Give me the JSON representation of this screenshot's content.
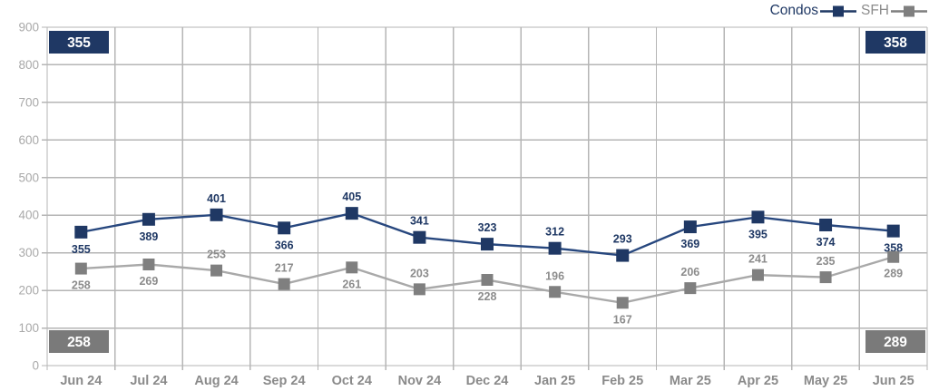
{
  "legend": {
    "condos_label": "Condos",
    "sfh_label": "SFH"
  },
  "colors": {
    "navy": "#1F3864",
    "navy_line": "#27477E",
    "gray_marker": "#7F7F7F",
    "gray_line": "#A9A9A9",
    "gray_badge": "#7A7A7A",
    "grid": "#B5B5B5",
    "ytick_label": "#A9A9A9",
    "xtick_label": "#8A8A8A",
    "condos_value_label": "#1F3864",
    "sfh_value_label": "#8C8C8C",
    "badge_text": "#FFFFFF"
  },
  "chart_data": {
    "type": "line",
    "categories": [
      "Jun 24",
      "Jul 24",
      "Aug 24",
      "Sep 24",
      "Oct 24",
      "Nov 24",
      "Dec 24",
      "Jan 25",
      "Feb 25",
      "Mar 25",
      "Apr 25",
      "May 25",
      "Jun 25"
    ],
    "series": [
      {
        "name": "Condos",
        "values": [
          355,
          389,
          401,
          366,
          405,
          341,
          323,
          312,
          293,
          369,
          395,
          374,
          358
        ],
        "label_positions": [
          "below",
          "below",
          "above",
          "below",
          "above",
          "above",
          "above",
          "above",
          "above",
          "below",
          "below",
          "below",
          "below"
        ]
      },
      {
        "name": "SFH",
        "values": [
          258,
          269,
          253,
          217,
          261,
          203,
          228,
          196,
          167,
          206,
          241,
          235,
          289
        ],
        "label_positions": [
          "below",
          "below",
          "above",
          "above",
          "below",
          "above",
          "below",
          "above",
          "below",
          "above",
          "above",
          "above",
          "below"
        ]
      }
    ],
    "ylim": [
      0,
      900
    ],
    "ytick_step": 100,
    "grid": true,
    "legend_position": "top-right",
    "badges": [
      {
        "position": "top-left",
        "value": "355",
        "series": "Condos"
      },
      {
        "position": "top-right",
        "value": "358",
        "series": "Condos"
      },
      {
        "position": "bottom-left",
        "value": "258",
        "series": "SFH"
      },
      {
        "position": "bottom-right",
        "value": "289",
        "series": "SFH"
      }
    ]
  }
}
